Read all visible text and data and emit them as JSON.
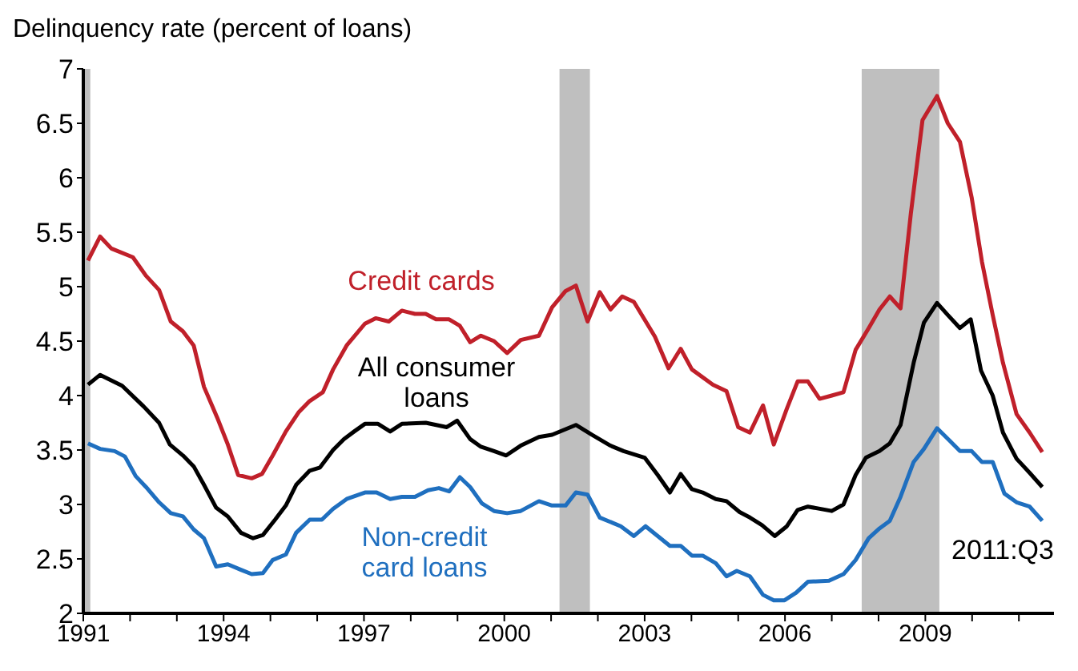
{
  "chart_data": {
    "type": "line",
    "ylabel": "Delinquency rate (percent of loans)",
    "xlim": [
      1991,
      2011.75
    ],
    "xticks": [
      1991,
      {
        "value": 1992,
        "label": null
      },
      {
        "value": 1993,
        "label": null
      },
      1994,
      {
        "value": 1995,
        "label": null
      },
      {
        "value": 1996,
        "label": null
      },
      1997,
      {
        "value": 1998,
        "label": null
      },
      {
        "value": 1999,
        "label": null
      },
      2000,
      {
        "value": 2001,
        "label": null
      },
      {
        "value": 2002,
        "label": null
      },
      2003,
      {
        "value": 2004,
        "label": null
      },
      {
        "value": 2005,
        "label": null
      },
      2006,
      {
        "value": 2007,
        "label": null
      },
      {
        "value": 2008,
        "label": null
      },
      2009,
      {
        "value": 2010,
        "label": null
      },
      {
        "value": 2011,
        "label": null
      }
    ],
    "ylim": [
      2,
      7
    ],
    "yticks": [
      2,
      2.5,
      3,
      3.5,
      4,
      4.5,
      5,
      5.5,
      6,
      6.5,
      7
    ],
    "grid": false,
    "legend": false,
    "marker": "none",
    "line_style": "solid",
    "bands": [
      {
        "axis": "x",
        "from": 1991,
        "to": 1991.15,
        "color": "#bfbfbf"
      },
      {
        "axis": "x",
        "from": 2001.18,
        "to": 2001.83,
        "color": "#bfbfbf"
      },
      {
        "axis": "x",
        "from": 2007.64,
        "to": 2009.3,
        "color": "#bfbfbf"
      }
    ],
    "annotations": [
      "2011:Q3"
    ],
    "series": [
      {
        "name": "Credit cards",
        "color": "#c0202a",
        "x": [
          1991.1,
          1991.36,
          1991.6,
          1992.06,
          1992.34,
          1992.62,
          1992.87,
          1993.13,
          1993.36,
          1993.58,
          1993.86,
          1994.09,
          1994.31,
          1994.6,
          1994.82,
          1995.05,
          1995.33,
          1995.61,
          1995.84,
          1996.12,
          1996.34,
          1996.63,
          1997.02,
          1997.25,
          1997.53,
          1997.81,
          1998.09,
          1998.32,
          1998.54,
          1998.82,
          1999.05,
          1999.27,
          1999.5,
          1999.78,
          2000.06,
          2000.35,
          2000.74,
          2001.02,
          2001.31,
          2001.53,
          2001.78,
          2002.04,
          2002.27,
          2002.52,
          2002.77,
          2003.22,
          2003.51,
          2003.77,
          2004.01,
          2004.46,
          2004.75,
          2005.0,
          2005.25,
          2005.53,
          2005.76,
          2006.04,
          2006.27,
          2006.49,
          2006.74,
          2007.0,
          2007.25,
          2007.51,
          2007.79,
          2008.02,
          2008.24,
          2008.47,
          2008.69,
          2008.94,
          2009.25,
          2009.48,
          2009.74,
          2009.99,
          2010.21,
          2010.44,
          2010.66,
          2010.95,
          2011.23,
          2011.5
        ],
        "values": [
          5.24,
          5.46,
          5.35,
          5.27,
          5.1,
          4.97,
          4.68,
          4.59,
          4.46,
          4.08,
          3.8,
          3.55,
          3.27,
          3.24,
          3.28,
          3.45,
          3.67,
          3.85,
          3.95,
          4.03,
          4.24,
          4.46,
          4.66,
          4.71,
          4.68,
          4.78,
          4.75,
          4.75,
          4.7,
          4.7,
          4.64,
          4.49,
          4.55,
          4.5,
          4.39,
          4.51,
          4.55,
          4.81,
          4.96,
          5.01,
          4.68,
          4.95,
          4.79,
          4.91,
          4.86,
          4.54,
          4.25,
          4.43,
          4.24,
          4.1,
          4.04,
          3.71,
          3.66,
          3.91,
          3.55,
          3.88,
          4.13,
          4.13,
          3.97,
          4.0,
          4.03,
          4.42,
          4.62,
          4.79,
          4.91,
          4.8,
          5.67,
          6.53,
          6.75,
          6.5,
          6.33,
          5.82,
          5.23,
          4.74,
          4.3,
          3.83,
          3.66,
          3.48
        ]
      },
      {
        "name": "All consumer loans",
        "color": "#000000",
        "x": [
          1991.1,
          1991.36,
          1991.83,
          1992.29,
          1992.62,
          1992.85,
          1993.13,
          1993.36,
          1993.58,
          1993.84,
          1994.09,
          1994.37,
          1994.63,
          1994.84,
          1995.1,
          1995.33,
          1995.55,
          1995.84,
          1996.06,
          1996.34,
          1996.57,
          1996.79,
          1997.02,
          1997.3,
          1997.56,
          1997.81,
          1998.32,
          1998.77,
          1998.99,
          1999.27,
          1999.5,
          1999.78,
          2000.04,
          2000.35,
          2000.74,
          2001.02,
          2001.53,
          2001.87,
          2002.27,
          2002.55,
          2003.0,
          2003.28,
          2003.54,
          2003.77,
          2004.01,
          2004.24,
          2004.52,
          2004.75,
          2005.03,
          2005.25,
          2005.51,
          2005.78,
          2006.04,
          2006.27,
          2006.49,
          2007.0,
          2007.25,
          2007.51,
          2007.73,
          2008.02,
          2008.24,
          2008.47,
          2008.75,
          2008.97,
          2009.25,
          2009.48,
          2009.74,
          2009.97,
          2010.19,
          2010.44,
          2010.66,
          2010.95,
          2011.23,
          2011.5
        ],
        "values": [
          4.1,
          4.19,
          4.09,
          3.9,
          3.75,
          3.55,
          3.45,
          3.35,
          3.18,
          2.97,
          2.89,
          2.74,
          2.69,
          2.72,
          2.86,
          2.99,
          3.18,
          3.31,
          3.34,
          3.5,
          3.6,
          3.67,
          3.74,
          3.74,
          3.67,
          3.74,
          3.75,
          3.71,
          3.77,
          3.6,
          3.53,
          3.49,
          3.45,
          3.54,
          3.62,
          3.64,
          3.73,
          3.64,
          3.54,
          3.49,
          3.43,
          3.27,
          3.11,
          3.28,
          3.14,
          3.11,
          3.05,
          3.03,
          2.93,
          2.88,
          2.81,
          2.71,
          2.8,
          2.95,
          2.98,
          2.94,
          3.0,
          3.27,
          3.43,
          3.49,
          3.56,
          3.73,
          4.3,
          4.67,
          4.85,
          4.74,
          4.62,
          4.7,
          4.23,
          4.0,
          3.66,
          3.42,
          3.29,
          3.16
        ]
      },
      {
        "name": "Non-credit card loans",
        "color": "#1f6fbf",
        "x": [
          1991.1,
          1991.36,
          1991.67,
          1991.89,
          1992.12,
          1992.34,
          1992.62,
          1992.87,
          1993.13,
          1993.36,
          1993.58,
          1993.84,
          1994.09,
          1994.37,
          1994.6,
          1994.84,
          1995.05,
          1995.33,
          1995.55,
          1995.84,
          1996.1,
          1996.34,
          1996.63,
          1997.02,
          1997.27,
          1997.56,
          1997.81,
          1998.09,
          1998.37,
          1998.6,
          1998.82,
          1999.05,
          1999.27,
          1999.52,
          1999.78,
          2000.06,
          2000.35,
          2000.74,
          2001.02,
          2001.31,
          2001.53,
          2001.78,
          2002.04,
          2002.49,
          2002.77,
          2003.02,
          2003.28,
          2003.54,
          2003.77,
          2004.01,
          2004.24,
          2004.52,
          2004.75,
          2004.97,
          2005.25,
          2005.53,
          2005.76,
          2005.99,
          2006.24,
          2006.49,
          2006.94,
          2007.25,
          2007.51,
          2007.79,
          2008.02,
          2008.24,
          2008.47,
          2008.75,
          2008.97,
          2009.25,
          2009.51,
          2009.74,
          2009.99,
          2010.21,
          2010.44,
          2010.69,
          2010.95,
          2011.23,
          2011.5
        ],
        "values": [
          3.56,
          3.51,
          3.49,
          3.44,
          3.26,
          3.16,
          3.02,
          2.92,
          2.89,
          2.77,
          2.69,
          2.43,
          2.45,
          2.4,
          2.36,
          2.37,
          2.49,
          2.54,
          2.74,
          2.86,
          2.86,
          2.96,
          3.05,
          3.11,
          3.11,
          3.05,
          3.07,
          3.07,
          3.13,
          3.15,
          3.12,
          3.25,
          3.16,
          3.01,
          2.94,
          2.92,
          2.94,
          3.03,
          2.99,
          2.99,
          3.11,
          3.09,
          2.88,
          2.8,
          2.71,
          2.8,
          2.71,
          2.62,
          2.62,
          2.53,
          2.53,
          2.46,
          2.34,
          2.39,
          2.34,
          2.17,
          2.12,
          2.12,
          2.19,
          2.29,
          2.3,
          2.36,
          2.49,
          2.69,
          2.78,
          2.85,
          3.07,
          3.39,
          3.51,
          3.7,
          3.59,
          3.49,
          3.49,
          3.39,
          3.39,
          3.1,
          3.02,
          2.98,
          2.85
        ]
      }
    ]
  }
}
